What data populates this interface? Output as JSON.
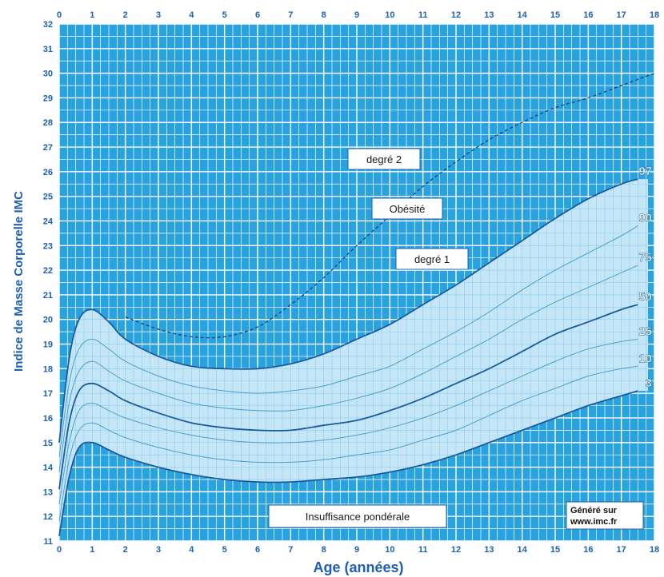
{
  "chart_data": {
    "type": "line",
    "title": "",
    "xlabel": "Age (années)",
    "ylabel": "Indice de Masse Corporelle  IMC",
    "xlim": [
      0,
      18
    ],
    "ylim": [
      11,
      32
    ],
    "x_ticks": [
      "0",
      "1",
      "2",
      "3",
      "4",
      "5",
      "6",
      "7",
      "8",
      "9",
      "10",
      "11",
      "12",
      "13",
      "14",
      "15",
      "16",
      "17",
      "18"
    ],
    "y_ticks": [
      "11",
      "12",
      "13",
      "14",
      "15",
      "16",
      "17",
      "18",
      "19",
      "20",
      "21",
      "22",
      "23",
      "24",
      "25",
      "26",
      "27",
      "28",
      "29",
      "30",
      "31",
      "32"
    ],
    "grid": true,
    "series": [
      {
        "name": "3",
        "points": [
          [
            0,
            11.2
          ],
          [
            0.3,
            13.6
          ],
          [
            0.6,
            14.8
          ],
          [
            1,
            15.0
          ],
          [
            1.5,
            14.7
          ],
          [
            2,
            14.4
          ],
          [
            3,
            14.0
          ],
          [
            4,
            13.7
          ],
          [
            5,
            13.5
          ],
          [
            6,
            13.4
          ],
          [
            7,
            13.4
          ],
          [
            8,
            13.5
          ],
          [
            9,
            13.6
          ],
          [
            10,
            13.8
          ],
          [
            11,
            14.1
          ],
          [
            12,
            14.5
          ],
          [
            13,
            15.0
          ],
          [
            14,
            15.5
          ],
          [
            15,
            16.0
          ],
          [
            16,
            16.5
          ],
          [
            17,
            16.9
          ],
          [
            17.5,
            17.1
          ]
        ]
      },
      {
        "name": "10",
        "points": [
          [
            0,
            11.8
          ],
          [
            0.3,
            14.3
          ],
          [
            0.6,
            15.5
          ],
          [
            1,
            15.8
          ],
          [
            1.5,
            15.5
          ],
          [
            2,
            15.2
          ],
          [
            3,
            14.8
          ],
          [
            4,
            14.5
          ],
          [
            5,
            14.3
          ],
          [
            6,
            14.2
          ],
          [
            7,
            14.2
          ],
          [
            8,
            14.3
          ],
          [
            9,
            14.5
          ],
          [
            10,
            14.7
          ],
          [
            11,
            15.1
          ],
          [
            12,
            15.5
          ],
          [
            13,
            16.1
          ],
          [
            14,
            16.7
          ],
          [
            15,
            17.2
          ],
          [
            16,
            17.7
          ],
          [
            17,
            18.0
          ],
          [
            17.5,
            18.1
          ]
        ]
      },
      {
        "name": "25",
        "points": [
          [
            0,
            12.5
          ],
          [
            0.3,
            15.0
          ],
          [
            0.6,
            16.3
          ],
          [
            1,
            16.6
          ],
          [
            1.5,
            16.3
          ],
          [
            2,
            16.0
          ],
          [
            3,
            15.6
          ],
          [
            4,
            15.3
          ],
          [
            5,
            15.1
          ],
          [
            6,
            15.0
          ],
          [
            7,
            15.0
          ],
          [
            8,
            15.1
          ],
          [
            9,
            15.3
          ],
          [
            10,
            15.6
          ],
          [
            11,
            16.0
          ],
          [
            12,
            16.5
          ],
          [
            13,
            17.1
          ],
          [
            14,
            17.7
          ],
          [
            15,
            18.3
          ],
          [
            16,
            18.8
          ],
          [
            17,
            19.1
          ],
          [
            17.5,
            19.2
          ]
        ]
      },
      {
        "name": "50",
        "points": [
          [
            0,
            13.1
          ],
          [
            0.3,
            15.8
          ],
          [
            0.6,
            17.1
          ],
          [
            1,
            17.4
          ],
          [
            1.5,
            17.1
          ],
          [
            2,
            16.7
          ],
          [
            3,
            16.2
          ],
          [
            4,
            15.8
          ],
          [
            5,
            15.6
          ],
          [
            6,
            15.5
          ],
          [
            7,
            15.5
          ],
          [
            8,
            15.7
          ],
          [
            9,
            15.9
          ],
          [
            10,
            16.3
          ],
          [
            11,
            16.8
          ],
          [
            12,
            17.4
          ],
          [
            13,
            18.0
          ],
          [
            14,
            18.7
          ],
          [
            15,
            19.4
          ],
          [
            16,
            19.9
          ],
          [
            17,
            20.4
          ],
          [
            17.5,
            20.6
          ]
        ]
      },
      {
        "name": "75",
        "points": [
          [
            0,
            13.8
          ],
          [
            0.3,
            16.6
          ],
          [
            0.6,
            17.9
          ],
          [
            1,
            18.3
          ],
          [
            1.5,
            17.9
          ],
          [
            2,
            17.5
          ],
          [
            3,
            17.0
          ],
          [
            4,
            16.6
          ],
          [
            5,
            16.4
          ],
          [
            6,
            16.3
          ],
          [
            7,
            16.3
          ],
          [
            8,
            16.5
          ],
          [
            9,
            16.8
          ],
          [
            10,
            17.2
          ],
          [
            11,
            17.8
          ],
          [
            12,
            18.5
          ],
          [
            13,
            19.2
          ],
          [
            14,
            20.0
          ],
          [
            15,
            20.7
          ],
          [
            16,
            21.3
          ],
          [
            17,
            21.9
          ],
          [
            17.5,
            22.2
          ]
        ]
      },
      {
        "name": "90",
        "points": [
          [
            0,
            14.4
          ],
          [
            0.3,
            17.4
          ],
          [
            0.6,
            18.8
          ],
          [
            1,
            19.2
          ],
          [
            1.5,
            18.8
          ],
          [
            2,
            18.3
          ],
          [
            3,
            17.7
          ],
          [
            4,
            17.3
          ],
          [
            5,
            17.1
          ],
          [
            6,
            17.0
          ],
          [
            7,
            17.1
          ],
          [
            8,
            17.3
          ],
          [
            9,
            17.7
          ],
          [
            10,
            18.1
          ],
          [
            11,
            18.8
          ],
          [
            12,
            19.5
          ],
          [
            13,
            20.3
          ],
          [
            14,
            21.2
          ],
          [
            15,
            22.0
          ],
          [
            16,
            22.7
          ],
          [
            17,
            23.4
          ],
          [
            17.5,
            23.8
          ]
        ]
      },
      {
        "name": "97",
        "points": [
          [
            0,
            15.0
          ],
          [
            0.3,
            18.4
          ],
          [
            0.6,
            20.0
          ],
          [
            1,
            20.4
          ],
          [
            1.5,
            19.9
          ],
          [
            2,
            19.2
          ],
          [
            3,
            18.5
          ],
          [
            4,
            18.1
          ],
          [
            5,
            18.0
          ],
          [
            6,
            18.0
          ],
          [
            7,
            18.2
          ],
          [
            8,
            18.6
          ],
          [
            9,
            19.2
          ],
          [
            10,
            19.8
          ],
          [
            11,
            20.6
          ],
          [
            12,
            21.4
          ],
          [
            13,
            22.3
          ],
          [
            14,
            23.2
          ],
          [
            15,
            24.1
          ],
          [
            16,
            24.9
          ],
          [
            17,
            25.5
          ],
          [
            17.5,
            25.7
          ]
        ]
      },
      {
        "name": "",
        "style": "dashed",
        "points": [
          [
            2,
            20.1
          ],
          [
            3,
            19.6
          ],
          [
            4,
            19.3
          ],
          [
            5,
            19.3
          ],
          [
            6,
            19.7
          ],
          [
            7,
            20.6
          ],
          [
            8,
            21.7
          ],
          [
            9,
            23.0
          ],
          [
            10,
            24.2
          ],
          [
            11,
            25.4
          ],
          [
            12,
            26.4
          ],
          [
            13,
            27.3
          ],
          [
            14,
            28.0
          ],
          [
            15,
            28.6
          ],
          [
            16,
            29.0
          ],
          [
            17,
            29.5
          ],
          [
            18,
            30.0
          ]
        ]
      }
    ],
    "annotations": {
      "degre2": "degré 2",
      "obesite": "Obésité",
      "degre1": "degré 1",
      "insuffisance": "Insuffisance pondérale",
      "credit_line1": "Généré sur",
      "credit_line2": "www.imc.fr"
    },
    "colors": {
      "grid_bg": "#29a3df",
      "grid_line": "#ffffff",
      "band": "#c5e6f7",
      "main_line": "#1a5a9e",
      "thin_line": "#4a9fd0",
      "text": "#1d5fb0"
    }
  }
}
